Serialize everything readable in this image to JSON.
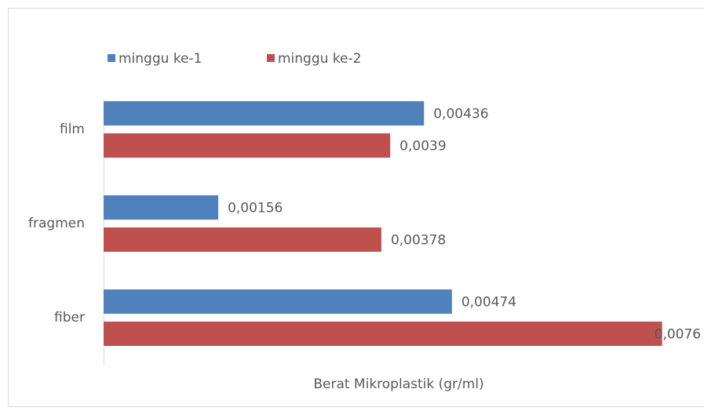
{
  "chart_data": {
    "type": "bar",
    "orientation": "horizontal",
    "x_label": "Berat Mikroplastik (gr/ml)",
    "categories": [
      "film",
      "fragmen",
      "fiber"
    ],
    "series": [
      {
        "name": "minggu ke-1",
        "color": "#4f81bd",
        "values": [
          0.00436,
          0.00156,
          0.00474
        ],
        "value_labels": [
          "0,00436",
          "0,00156",
          "0,00474"
        ]
      },
      {
        "name": "minggu ke-2",
        "color": "#c0504d",
        "values": [
          0.0039,
          0.00378,
          0.0076
        ],
        "value_labels": [
          "0,0039",
          "0,00378",
          "0,0076"
        ]
      }
    ],
    "xlim": [
      0,
      0.00817
    ],
    "legend": "top"
  }
}
